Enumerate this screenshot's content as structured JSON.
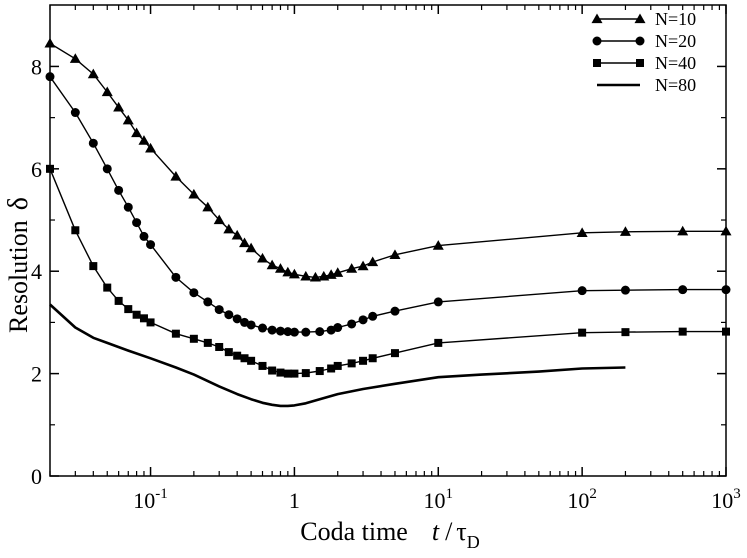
{
  "chart_data": {
    "type": "line",
    "xscale": "log",
    "xlim": [
      0.02,
      1000
    ],
    "ylim": [
      0,
      9.2
    ],
    "xticks": [
      {
        "value": 0.1,
        "base": "10",
        "exp": "-1"
      },
      {
        "value": 1,
        "base": "1",
        "exp": ""
      },
      {
        "value": 10,
        "base": "10",
        "exp": "1"
      },
      {
        "value": 100,
        "base": "10",
        "exp": "2"
      },
      {
        "value": 1000,
        "base": "10",
        "exp": "3"
      }
    ],
    "yticks": [
      {
        "value": 0,
        "label": "0"
      },
      {
        "value": 2,
        "label": "2"
      },
      {
        "value": 4,
        "label": "4"
      },
      {
        "value": 6,
        "label": "6"
      },
      {
        "value": 8,
        "label": "8"
      }
    ],
    "xlabel": {
      "main": "Coda time",
      "t": "t",
      "slash": "/",
      "tau": "τ",
      "sub": "D"
    },
    "ylabel": {
      "main": "Resolution",
      "symbol": "δ"
    },
    "legend_position": "top-right",
    "series": [
      {
        "name": "N=10",
        "marker": "triangle",
        "x": [
          0.02,
          0.03,
          0.04,
          0.05,
          0.06,
          0.07,
          0.08,
          0.09,
          0.1,
          0.15,
          0.2,
          0.25,
          0.3,
          0.35,
          0.4,
          0.45,
          0.5,
          0.6,
          0.7,
          0.8,
          0.9,
          1.0,
          1.2,
          1.4,
          1.6,
          1.8,
          2.0,
          2.5,
          3.0,
          3.5,
          5,
          10,
          100,
          200,
          500,
          1000
        ],
        "y": [
          8.45,
          8.15,
          7.85,
          7.5,
          7.2,
          6.95,
          6.7,
          6.55,
          6.4,
          5.85,
          5.5,
          5.25,
          5.0,
          4.82,
          4.7,
          4.55,
          4.45,
          4.25,
          4.12,
          4.05,
          3.98,
          3.94,
          3.9,
          3.88,
          3.9,
          3.93,
          3.97,
          4.05,
          4.1,
          4.18,
          4.32,
          4.5,
          4.75,
          4.77,
          4.78,
          4.78
        ]
      },
      {
        "name": "N=20",
        "marker": "circle",
        "x": [
          0.02,
          0.03,
          0.04,
          0.05,
          0.06,
          0.07,
          0.08,
          0.09,
          0.1,
          0.15,
          0.2,
          0.25,
          0.3,
          0.35,
          0.4,
          0.45,
          0.5,
          0.6,
          0.7,
          0.8,
          0.9,
          1.0,
          1.2,
          1.5,
          1.8,
          2.0,
          2.5,
          3.0,
          3.5,
          5,
          10,
          100,
          200,
          500,
          1000
        ],
        "y": [
          7.8,
          7.1,
          6.5,
          6.0,
          5.58,
          5.25,
          4.95,
          4.68,
          4.52,
          3.88,
          3.58,
          3.4,
          3.25,
          3.15,
          3.07,
          3.0,
          2.95,
          2.89,
          2.85,
          2.83,
          2.82,
          2.81,
          2.81,
          2.82,
          2.85,
          2.9,
          2.97,
          3.05,
          3.12,
          3.22,
          3.4,
          3.62,
          3.63,
          3.64,
          3.64
        ]
      },
      {
        "name": "N=40",
        "marker": "square",
        "x": [
          0.02,
          0.03,
          0.04,
          0.05,
          0.06,
          0.07,
          0.08,
          0.09,
          0.1,
          0.15,
          0.2,
          0.25,
          0.3,
          0.35,
          0.4,
          0.45,
          0.5,
          0.6,
          0.7,
          0.8,
          0.9,
          1.0,
          1.2,
          1.5,
          1.8,
          2.0,
          2.5,
          3.0,
          3.5,
          5,
          10,
          100,
          200,
          500,
          1000
        ],
        "y": [
          6.0,
          4.8,
          4.1,
          3.68,
          3.42,
          3.26,
          3.15,
          3.08,
          3.0,
          2.78,
          2.68,
          2.6,
          2.52,
          2.42,
          2.35,
          2.3,
          2.25,
          2.15,
          2.06,
          2.02,
          2.0,
          2.0,
          2.01,
          2.05,
          2.1,
          2.15,
          2.2,
          2.25,
          2.3,
          2.4,
          2.6,
          2.8,
          2.81,
          2.82,
          2.82
        ]
      },
      {
        "name": "N=80",
        "marker": "none",
        "x": [
          0.02,
          0.03,
          0.04,
          0.05,
          0.07,
          0.1,
          0.15,
          0.2,
          0.3,
          0.4,
          0.5,
          0.6,
          0.7,
          0.8,
          0.9,
          1.0,
          1.2,
          1.5,
          2.0,
          3.0,
          5.0,
          10,
          20,
          50,
          100,
          200
        ],
        "y": [
          3.35,
          2.9,
          2.7,
          2.6,
          2.45,
          2.3,
          2.12,
          1.98,
          1.75,
          1.6,
          1.5,
          1.43,
          1.39,
          1.37,
          1.37,
          1.38,
          1.42,
          1.5,
          1.6,
          1.7,
          1.8,
          1.93,
          1.98,
          2.04,
          2.1,
          2.12
        ]
      }
    ]
  }
}
